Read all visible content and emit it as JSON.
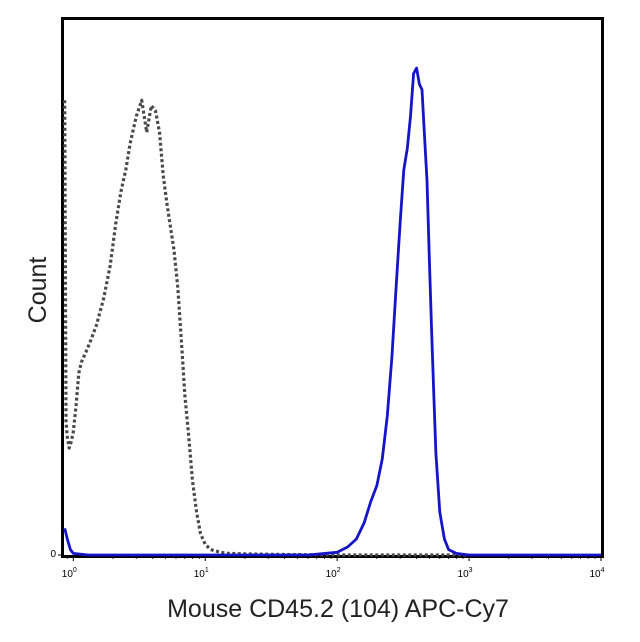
{
  "chart_data": {
    "type": "line",
    "title": "",
    "xlabel": "Mouse CD45.2 (104) APC-Cy7",
    "ylabel": "Count",
    "x_scale": "log",
    "xlim": [
      0.85,
      10000
    ],
    "ylim": [
      0,
      100
    ],
    "grid": false,
    "legend": "none",
    "x_ticks": [
      {
        "value": 1,
        "base": "10",
        "exp": "0"
      },
      {
        "value": 10,
        "base": "10",
        "exp": "1"
      },
      {
        "value": 100,
        "base": "10",
        "exp": "2"
      },
      {
        "value": 1000,
        "base": "10",
        "exp": "3"
      },
      {
        "value": 10000,
        "base": "10",
        "exp": "4"
      }
    ],
    "y_ticks": [
      {
        "value": 0,
        "label": "0"
      }
    ],
    "series": [
      {
        "style": "dotted",
        "color": "#4a4a4a",
        "x": [
          0.86,
          0.88,
          0.9,
          0.93,
          0.96,
          1.0,
          1.05,
          1.1,
          1.15,
          1.25,
          1.35,
          1.5,
          1.7,
          1.9,
          2.1,
          2.3,
          2.5,
          2.7,
          3.0,
          3.3,
          3.6,
          3.9,
          4.2,
          4.5,
          4.8,
          5.1,
          5.4,
          5.8,
          6.2,
          6.6,
          7.0,
          7.5,
          8.0,
          8.6,
          9.2,
          10,
          11,
          13,
          15,
          20,
          40,
          100,
          1000
        ],
        "y": [
          85,
          25,
          22,
          20,
          21,
          23,
          28,
          34,
          36,
          38,
          40,
          43,
          48,
          54,
          62,
          68,
          72,
          77,
          82,
          85,
          79,
          84,
          83,
          79,
          71,
          66,
          62,
          57,
          50,
          40,
          30,
          22,
          14,
          8,
          4,
          2,
          1,
          0.5,
          0.3,
          0.2,
          0.1,
          0,
          0
        ]
      },
      {
        "style": "solid",
        "color": "#1414c8",
        "x": [
          0.86,
          0.9,
          0.95,
          1.0,
          1.3,
          2,
          5,
          10,
          30,
          60,
          100,
          120,
          140,
          160,
          180,
          200,
          220,
          240,
          260,
          280,
          300,
          320,
          340,
          360,
          380,
          400,
          420,
          440,
          460,
          480,
          500,
          520,
          540,
          560,
          600,
          650,
          700,
          800,
          1000,
          10000
        ],
        "y": [
          5,
          3,
          1,
          0.3,
          0,
          0,
          0,
          0,
          0,
          0,
          0.5,
          1.5,
          3,
          6,
          10,
          13,
          18,
          26,
          37,
          50,
          62,
          72,
          76,
          82,
          90,
          91,
          88,
          87,
          78,
          70,
          55,
          42,
          30,
          19,
          8,
          3,
          1,
          0.3,
          0,
          0
        ]
      }
    ]
  }
}
